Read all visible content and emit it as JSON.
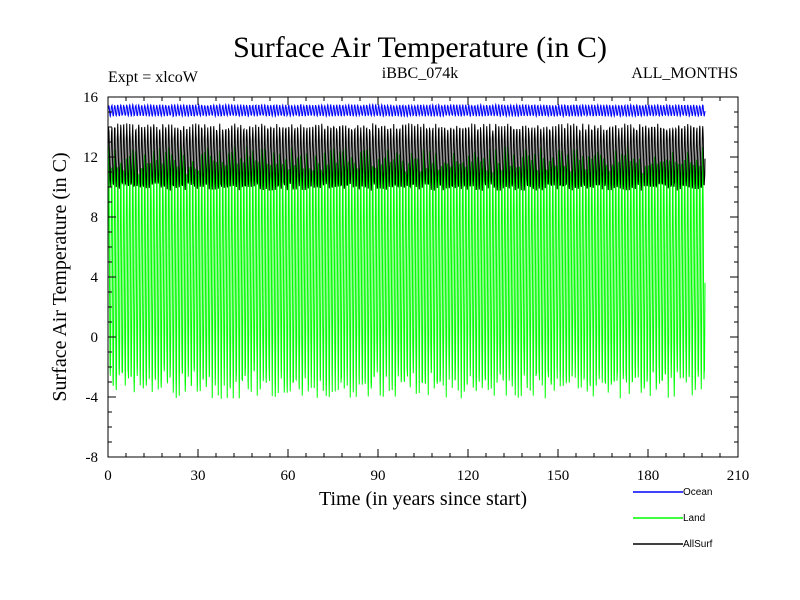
{
  "chart_data": {
    "type": "line",
    "title": "Surface Air Temperature (in C)",
    "subtitle_left": "Expt = xlcoW",
    "subtitle_center": "iBBC_074k",
    "subtitle_right": "ALL_MONTHS",
    "xlabel": "Time (in years since start)",
    "ylabel": "Surface Air Temperature (in C)",
    "xlim": [
      0,
      210
    ],
    "ylim": [
      -8,
      16
    ],
    "xticks": [
      0,
      30,
      60,
      90,
      120,
      150,
      180,
      210
    ],
    "yticks": [
      -8,
      -4,
      0,
      4,
      8,
      12,
      16
    ],
    "x_end": 199,
    "series": [
      {
        "name": "Ocean",
        "color": "#0000ff",
        "mean": 15.1,
        "amplitude": 0.35,
        "min_approx": 14.6,
        "max_approx": 15.6
      },
      {
        "name": "Land",
        "color": "#00ff00",
        "mean": 4.3,
        "amplitude": 7.5,
        "min_approx": -5.2,
        "max_approx": 13.7
      },
      {
        "name": "AllSurf",
        "color": "#000000",
        "mean": 12.0,
        "amplitude": 2.0,
        "min_approx": 9.4,
        "max_approx": 14.6
      }
    ],
    "legend": [
      "Ocean",
      "Land",
      "AllSurf"
    ],
    "legend_position": "bottom-right"
  }
}
